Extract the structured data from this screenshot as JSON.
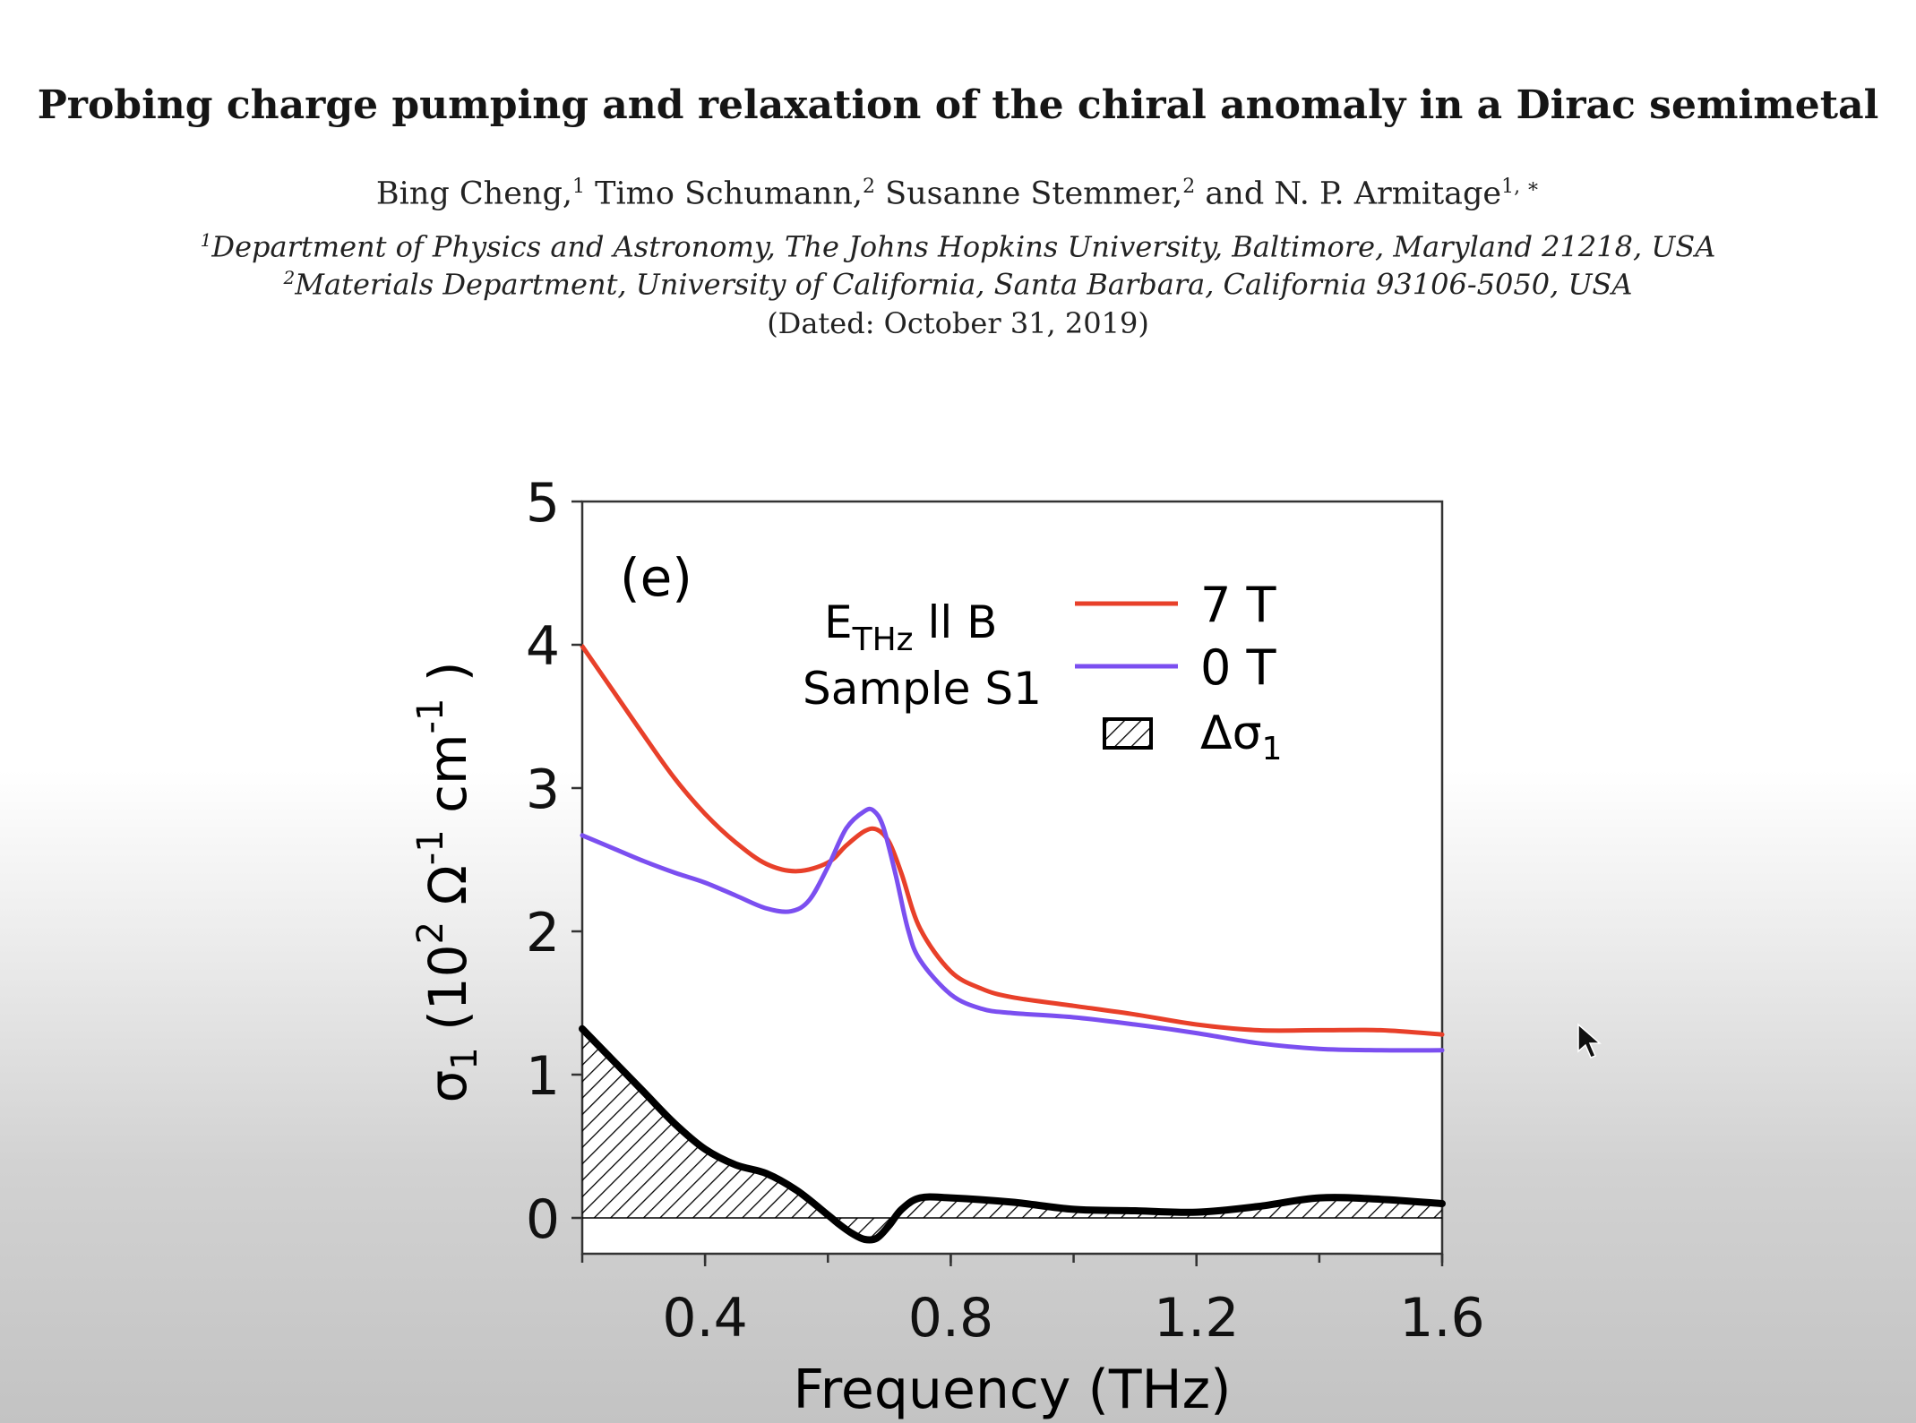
{
  "paper": {
    "title": "Probing charge pumping and relaxation of the chiral anomaly in a Dirac semimetal",
    "authors": [
      {
        "name": "Bing Cheng,",
        "sup": "1"
      },
      {
        "name": "Timo Schumann,",
        "sup": "2"
      },
      {
        "name": "Susanne Stemmer,",
        "sup": "2"
      },
      {
        "name": "and N. P. Armitage",
        "sup": "1, ∗"
      }
    ],
    "affiliations": [
      {
        "sup": "1",
        "text": "Department of Physics and Astronomy, The Johns Hopkins University, Baltimore, Maryland 21218, USA"
      },
      {
        "sup": "2",
        "text": "Materials Department, University of California, Santa Barbara, California 93106-5050, USA"
      }
    ],
    "dated": "(Dated: October 31, 2019)"
  },
  "chart_data": {
    "type": "line",
    "panel_label": "(e)",
    "xlabel": "Frequency (THz)",
    "ylabel": "σ1 (10^2 Ω^-1 cm^-1)",
    "xlim": [
      0.2,
      1.6
    ],
    "ylim": [
      -0.25,
      5
    ],
    "xticks": [
      0.4,
      0.8,
      1.2,
      1.6
    ],
    "yticks": [
      0,
      1,
      2,
      3,
      4,
      5
    ],
    "annotation": {
      "line1_main": "E",
      "line1_sub": "THz",
      "line1_rest": " ll B",
      "line2": "Sample S1"
    },
    "legend_position": "top-right",
    "series": [
      {
        "name": "7 T",
        "color": "#e8402a",
        "x": [
          0.2,
          0.25,
          0.3,
          0.35,
          0.4,
          0.45,
          0.5,
          0.55,
          0.6,
          0.63,
          0.66,
          0.68,
          0.7,
          0.72,
          0.75,
          0.8,
          0.85,
          0.9,
          1.0,
          1.1,
          1.2,
          1.3,
          1.4,
          1.5,
          1.6
        ],
        "y": [
          3.99,
          3.68,
          3.37,
          3.07,
          2.82,
          2.62,
          2.47,
          2.42,
          2.48,
          2.6,
          2.7,
          2.71,
          2.62,
          2.4,
          2.02,
          1.72,
          1.6,
          1.54,
          1.48,
          1.42,
          1.35,
          1.31,
          1.31,
          1.31,
          1.28
        ]
      },
      {
        "name": "0 T",
        "color": "#7b4ff0",
        "x": [
          0.2,
          0.25,
          0.3,
          0.35,
          0.4,
          0.45,
          0.5,
          0.54,
          0.57,
          0.6,
          0.63,
          0.66,
          0.675,
          0.69,
          0.71,
          0.73,
          0.75,
          0.8,
          0.85,
          0.9,
          1.0,
          1.1,
          1.2,
          1.3,
          1.4,
          1.5,
          1.6
        ],
        "y": [
          2.67,
          2.58,
          2.49,
          2.41,
          2.34,
          2.25,
          2.16,
          2.14,
          2.22,
          2.45,
          2.72,
          2.84,
          2.84,
          2.73,
          2.4,
          2.02,
          1.8,
          1.56,
          1.46,
          1.43,
          1.4,
          1.35,
          1.29,
          1.22,
          1.18,
          1.17,
          1.17
        ]
      },
      {
        "name": "Δσ1",
        "color": "#000000",
        "fill": "hatched",
        "x": [
          0.2,
          0.25,
          0.3,
          0.35,
          0.4,
          0.45,
          0.5,
          0.55,
          0.6,
          0.62,
          0.64,
          0.66,
          0.68,
          0.7,
          0.72,
          0.75,
          0.8,
          0.9,
          1.0,
          1.1,
          1.2,
          1.3,
          1.4,
          1.5,
          1.6
        ],
        "y": [
          1.32,
          1.1,
          0.88,
          0.66,
          0.48,
          0.37,
          0.31,
          0.19,
          0.02,
          -0.05,
          -0.11,
          -0.15,
          -0.14,
          -0.05,
          0.06,
          0.14,
          0.14,
          0.11,
          0.06,
          0.05,
          0.04,
          0.08,
          0.14,
          0.13,
          0.1
        ]
      }
    ]
  }
}
